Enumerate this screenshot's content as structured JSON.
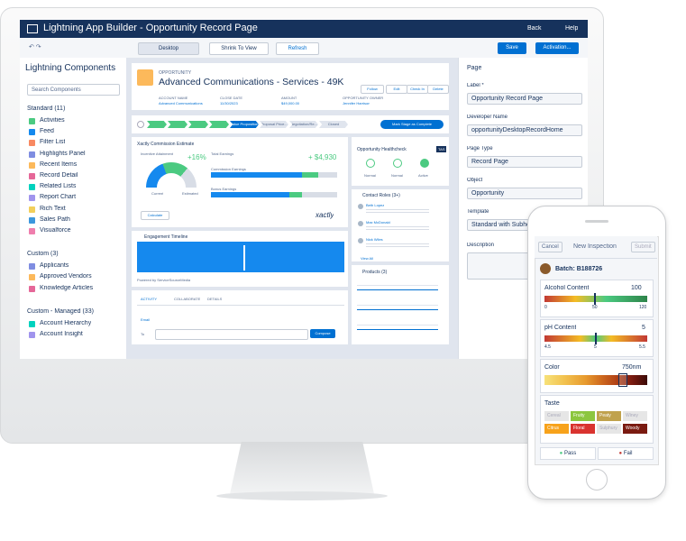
{
  "header": {
    "title": "Lightning App Builder - Opportunity Record Page",
    "back": "Back",
    "help": "Help"
  },
  "toolbar": {
    "device": "Desktop",
    "zoom": "Shrink To View",
    "refresh": "Refresh",
    "save": "Save",
    "activation": "Activation..."
  },
  "components": {
    "title": "Lightning Components",
    "search": "Search Components",
    "groups": [
      {
        "name": "Standard (11)",
        "items": [
          "Activities",
          "Feed",
          "Filter List",
          "Highlights Panel",
          "Recent Items",
          "Record Detail",
          "Related Lists",
          "Report Chart",
          "Rich Text",
          "Sales Path",
          "Visualforce"
        ]
      },
      {
        "name": "Custom (3)",
        "items": [
          "Applicants",
          "Approved Vendors",
          "Knowledge Articles"
        ]
      },
      {
        "name": "Custom - Managed (33)",
        "items": [
          "Account Hierarchy",
          "Account Insight"
        ]
      }
    ]
  },
  "record": {
    "object": "OPPORTUNITY",
    "name": "Advanced Communications - Services - 49K",
    "follow": "Follow",
    "actions": [
      "Edit",
      "Check In",
      "Delete"
    ],
    "fields": [
      [
        "ACCOUNT NAME",
        "Advanced Communications"
      ],
      [
        "CLOSE DATE",
        "11/30/2023"
      ],
      [
        "AMOUNT",
        "$49,000.00"
      ],
      [
        "OPPORTUNITY OWNER",
        "Jennifer Harrison"
      ]
    ],
    "path": [
      "Value Proposition",
      "Proposal Price...",
      "Negotiation/Re...",
      "Closed"
    ],
    "complete": "Mark Stage as Complete",
    "commission": {
      "title": "Xactly Commission Estimate",
      "attainment": "Incentive Attainment",
      "attainment_change": "+16%",
      "total": "Total Earnings",
      "total_change": "+ $4,930",
      "commission": "Commission Earnings",
      "bonus": "Bonus Earnings",
      "current": "Current",
      "estimated": "Estimated",
      "calculate": "Calculate",
      "brand": "xactly"
    },
    "timeline": {
      "title": "Engagement Timeline",
      "powered": "Powered by ServiceSourceMedia"
    },
    "tabs": [
      "ACTIVITY",
      "COLLABORATE",
      "DETAILS"
    ],
    "email": "Email",
    "to": "To",
    "compose": "Compose",
    "health": {
      "title": "Opportunity Healthcheck",
      "badge": "TAS",
      "labels": [
        "Normal",
        "Normal",
        "Active"
      ]
    },
    "contacts": {
      "title": "Contact Roles (3+)",
      "names": [
        "Beth Lopez",
        "Max McDonald",
        "Nick Wiles"
      ],
      "view_all": "View All"
    },
    "products": {
      "title": "Products (3)"
    }
  },
  "properties": {
    "title": "Page",
    "fields": [
      {
        "label": "Label *",
        "value": "Opportunity Record Page"
      },
      {
        "label": "Developer Name",
        "value": "opportunityDesktopRecordHome"
      },
      {
        "label": "Page Type",
        "value": "Record Page"
      },
      {
        "label": "Object",
        "value": "Opportunity"
      },
      {
        "label": "Template",
        "value": "Standard with Subheader"
      }
    ],
    "description": "Description"
  },
  "phone": {
    "cancel": "Cancel",
    "title": "New Inspection",
    "submit": "Submit",
    "batch": "Batch: B188726",
    "alcohol": {
      "label": "Alcohol Content",
      "value": "100",
      "ticks": [
        "0",
        "50",
        "120"
      ]
    },
    "ph": {
      "label": "pH Content",
      "value": "5",
      "ticks": [
        "4.5",
        "5",
        "5.5"
      ]
    },
    "color": {
      "label": "Color",
      "value": "750nm"
    },
    "taste": {
      "label": "Taste",
      "tags": [
        "Cereal",
        "Fruity",
        "Peaty",
        "Winey",
        "Citrus",
        "Floral",
        "Sulphury",
        "Woody"
      ]
    },
    "pass": "Pass",
    "fail": "Fail"
  }
}
